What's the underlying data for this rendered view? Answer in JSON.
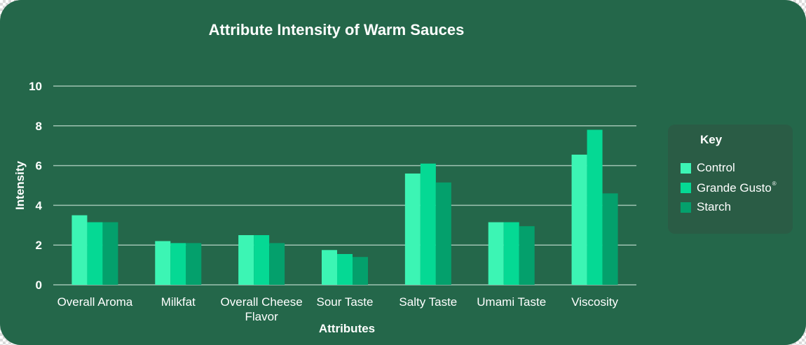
{
  "chart_data": {
    "type": "bar",
    "title": "Attribute Intensity of Warm Sauces",
    "xlabel": "Attributes",
    "ylabel": "Intensity",
    "ylim": [
      0,
      10
    ],
    "yticks": [
      0,
      2,
      4,
      6,
      8,
      10
    ],
    "grid": true,
    "legend_title": "Key",
    "legend_position": "right",
    "categories": [
      "Overall Aroma",
      "Milkfat",
      "Overall Cheese Flavor",
      "Sour Taste",
      "Salty Taste",
      "Umami Taste",
      "Viscosity"
    ],
    "series": [
      {
        "name": "Control",
        "color": "#3cf5b4",
        "values": [
          3.5,
          2.2,
          2.5,
          1.75,
          5.6,
          3.15,
          6.55
        ]
      },
      {
        "name": "Grande Gusto",
        "name_superscript": "®",
        "color": "#05d994",
        "values": [
          3.15,
          2.1,
          2.5,
          1.55,
          6.1,
          3.15,
          7.8
        ]
      },
      {
        "name": "Starch",
        "color": "#04a06c",
        "values": [
          3.15,
          2.1,
          2.1,
          1.4,
          5.15,
          2.95,
          4.6
        ]
      }
    ]
  }
}
